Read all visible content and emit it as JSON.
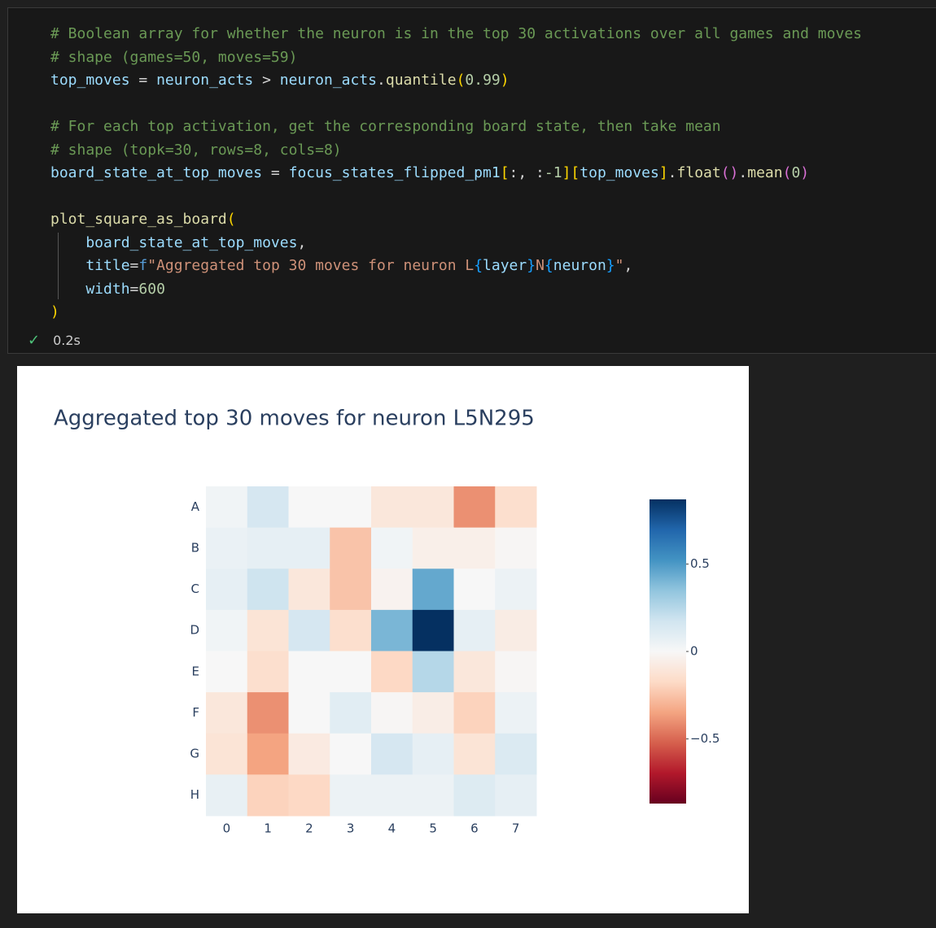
{
  "code_cell": {
    "lines": [
      [
        {
          "text": "# Boolean array for whether the neuron is in the top 30 activations over all games and moves",
          "color": "#6a9955"
        }
      ],
      [
        {
          "text": "# shape (games=50, moves=59)",
          "color": "#6a9955"
        }
      ],
      [
        {
          "text": "top_moves",
          "color": "#9cdcfe"
        },
        {
          "text": " = ",
          "color": "#d4d4d4"
        },
        {
          "text": "neuron_acts",
          "color": "#9cdcfe"
        },
        {
          "text": " > ",
          "color": "#d4d4d4"
        },
        {
          "text": "neuron_acts",
          "color": "#9cdcfe"
        },
        {
          "text": ".",
          "color": "#d4d4d4"
        },
        {
          "text": "quantile",
          "color": "#dcdcaa"
        },
        {
          "text": "(",
          "color": "#ffd700"
        },
        {
          "text": "0.99",
          "color": "#b5cea8"
        },
        {
          "text": ")",
          "color": "#ffd700"
        }
      ],
      [],
      [
        {
          "text": "# For each top activation, get the corresponding board state, then take mean",
          "color": "#6a9955"
        }
      ],
      [
        {
          "text": "# shape (topk=30, rows=8, cols=8)",
          "color": "#6a9955"
        }
      ],
      [
        {
          "text": "board_state_at_top_moves",
          "color": "#9cdcfe"
        },
        {
          "text": " = ",
          "color": "#d4d4d4"
        },
        {
          "text": "focus_states_flipped_pm1",
          "color": "#9cdcfe"
        },
        {
          "text": "[",
          "color": "#ffd700"
        },
        {
          "text": ":, :",
          "color": "#d4d4d4"
        },
        {
          "text": "-1",
          "color": "#b5cea8"
        },
        {
          "text": "][",
          "color": "#ffd700"
        },
        {
          "text": "top_moves",
          "color": "#9cdcfe"
        },
        {
          "text": "]",
          "color": "#ffd700"
        },
        {
          "text": ".",
          "color": "#d4d4d4"
        },
        {
          "text": "float",
          "color": "#dcdcaa"
        },
        {
          "text": "()",
          "color": "#da70d6"
        },
        {
          "text": ".",
          "color": "#d4d4d4"
        },
        {
          "text": "mean",
          "color": "#dcdcaa"
        },
        {
          "text": "(",
          "color": "#da70d6"
        },
        {
          "text": "0",
          "color": "#b5cea8"
        },
        {
          "text": ")",
          "color": "#da70d6"
        }
      ],
      [],
      [
        {
          "text": "plot_square_as_board",
          "color": "#dcdcaa"
        },
        {
          "text": "(",
          "color": "#ffd700"
        }
      ],
      [
        {
          "text": "    board_state_at_top_moves",
          "color": "#9cdcfe"
        },
        {
          "text": ",",
          "color": "#d4d4d4"
        }
      ],
      [
        {
          "text": "    title",
          "color": "#9cdcfe"
        },
        {
          "text": "=",
          "color": "#d4d4d4"
        },
        {
          "text": "f",
          "color": "#569cd6"
        },
        {
          "text": "\"Aggregated top 30 moves for neuron L",
          "color": "#ce9178"
        },
        {
          "text": "{",
          "color": "#179fff"
        },
        {
          "text": "layer",
          "color": "#9cdcfe"
        },
        {
          "text": "}",
          "color": "#179fff"
        },
        {
          "text": "N",
          "color": "#ce9178"
        },
        {
          "text": "{",
          "color": "#179fff"
        },
        {
          "text": "neuron",
          "color": "#9cdcfe"
        },
        {
          "text": "}",
          "color": "#179fff"
        },
        {
          "text": "\"",
          "color": "#ce9178"
        },
        {
          "text": ",",
          "color": "#d4d4d4"
        }
      ],
      [
        {
          "text": "    width",
          "color": "#9cdcfe"
        },
        {
          "text": "=",
          "color": "#d4d4d4"
        },
        {
          "text": "600",
          "color": "#b5cea8"
        }
      ],
      [
        {
          "text": ")",
          "color": "#ffd700"
        }
      ]
    ],
    "status_icon": "✓",
    "duration": "0.2s"
  },
  "chart_data": {
    "type": "heatmap",
    "title": "Aggregated top 30 moves for neuron L5N295",
    "x": [
      0,
      1,
      2,
      3,
      4,
      5,
      6,
      7
    ],
    "y": [
      "A",
      "B",
      "C",
      "D",
      "E",
      "F",
      "G",
      "H"
    ],
    "z": [
      [
        0.03,
        0.15,
        0.0,
        0.0,
        -0.1,
        -0.1,
        -0.4,
        -0.15
      ],
      [
        0.06,
        0.08,
        0.08,
        -0.25,
        0.03,
        -0.05,
        -0.05,
        -0.01
      ],
      [
        0.08,
        0.18,
        -0.1,
        -0.25,
        -0.03,
        0.45,
        0.0,
        0.05
      ],
      [
        0.03,
        -0.12,
        0.15,
        -0.15,
        0.4,
        0.87,
        0.08,
        -0.07
      ],
      [
        0.0,
        -0.15,
        0.0,
        0.0,
        -0.18,
        0.25,
        -0.1,
        -0.01
      ],
      [
        -0.1,
        -0.4,
        0.0,
        0.1,
        -0.01,
        -0.06,
        -0.2,
        0.05
      ],
      [
        -0.12,
        -0.35,
        -0.08,
        0.0,
        0.15,
        0.08,
        -0.12,
        0.13
      ],
      [
        0.07,
        -0.2,
        -0.18,
        0.05,
        0.05,
        0.05,
        0.12,
        0.08
      ]
    ],
    "zlim": [
      -0.87,
      0.87
    ],
    "zticks": [
      {
        "value": -0.5,
        "label": "−0.5"
      },
      0,
      0.5
    ],
    "colorscale": [
      "#67001f",
      "#b2182b",
      "#d6604d",
      "#f4a582",
      "#fddbc7",
      "#f7f7f7",
      "#d1e5f0",
      "#92c5de",
      "#4393c3",
      "#2166ac",
      "#053061"
    ]
  }
}
